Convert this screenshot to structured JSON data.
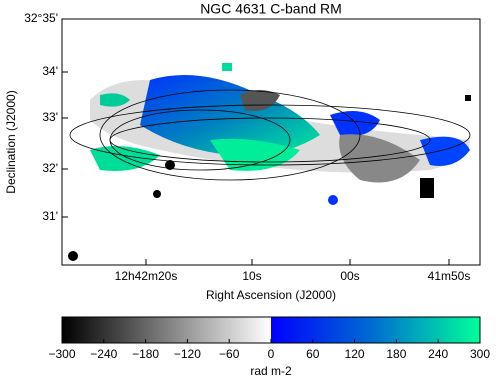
{
  "title": "NGC 4631  C-band  RM",
  "x_axis": {
    "label": "Right Ascension (J2000)",
    "ticks": [
      "12h42m20s",
      "10s",
      "00s",
      "41m50s"
    ]
  },
  "y_axis": {
    "label": "Declination (J2000)",
    "ticks": [
      "32°35'",
      "34'",
      "33'",
      "32'",
      "31'"
    ]
  },
  "colorbar": {
    "label": "rad m-2",
    "ticks": [
      "−300",
      "−240",
      "−180",
      "−120",
      "−60",
      "0",
      "60",
      "120",
      "180",
      "240",
      "300"
    ]
  }
}
